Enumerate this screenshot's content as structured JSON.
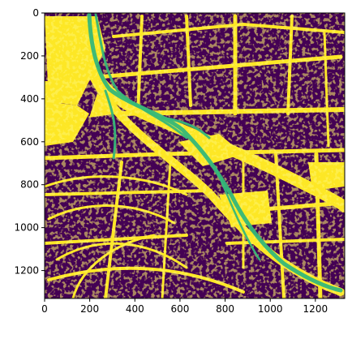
{
  "chart_data": {
    "type": "heatmap",
    "title": "",
    "xlabel": "",
    "ylabel": "",
    "xlim": [
      0,
      1330
    ],
    "ylim": [
      1330,
      0
    ],
    "x_ticks": [
      0,
      200,
      400,
      600,
      800,
      1000,
      1200
    ],
    "y_ticks": [
      0,
      200,
      400,
      600,
      800,
      1000,
      1200
    ],
    "x_tick_labels": [
      "0",
      "200",
      "400",
      "600",
      "800",
      "1000",
      "1200"
    ],
    "y_tick_labels": [
      "0",
      "200",
      "400",
      "600",
      "800",
      "1000",
      "1200"
    ],
    "grid": false,
    "legend": "none",
    "colormap": "viridis",
    "colors": {
      "background": "#440154",
      "foreground": "#fde725",
      "overlay": "#35b779"
    },
    "content": "segmentation map of dense urban buildings (dark) and streets/open space (yellow) with a green diagonal path crossing from top-left to bottom-right"
  }
}
